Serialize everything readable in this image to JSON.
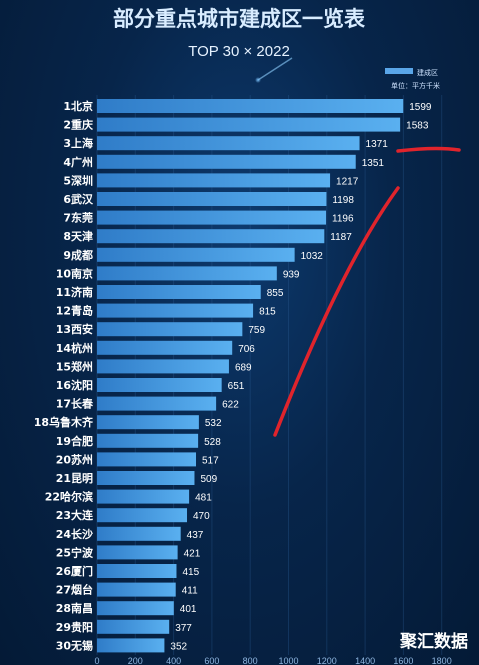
{
  "header": {
    "title": "部分重点城市建成区一览表",
    "subtitle": "TOP 30 × 2022"
  },
  "legend": {
    "series_label": "建成区",
    "unit": "单位：平方千米"
  },
  "watermark": "聚汇数据",
  "colors": {
    "bar": "#3f8fd8",
    "bar_light": "#5aa6e8",
    "background": "#07254a",
    "annotation": "#e0242c"
  },
  "chart_data": {
    "type": "bar",
    "orientation": "horizontal",
    "title": "部分重点城市建成区一览表",
    "subtitle": "TOP 30 × 2022",
    "categories": [
      "1北京",
      "2重庆",
      "3上海",
      "4广州",
      "5深圳",
      "6武汉",
      "7东莞",
      "8天津",
      "9成都",
      "10南京",
      "11济南",
      "12青岛",
      "13西安",
      "14杭州",
      "15郑州",
      "16沈阳",
      "17长春",
      "18乌鲁木齐",
      "19合肥",
      "20苏州",
      "21昆明",
      "22哈尔滨",
      "23大连",
      "24长沙",
      "25宁波",
      "26厦门",
      "27烟台",
      "28南昌",
      "29贵阳",
      "30无锡"
    ],
    "values": [
      1599,
      1583,
      1371,
      1351,
      1217,
      1198,
      1196,
      1187,
      1032,
      939,
      855,
      815,
      759,
      706,
      689,
      651,
      622,
      532,
      528,
      517,
      509,
      481,
      470,
      437,
      421,
      415,
      411,
      401,
      377,
      352
    ],
    "value_labels": [
      "1599",
      "1583",
      "1371",
      "1351",
      "1217",
      "1198",
      "1196",
      "1187",
      "1032",
      "939",
      "855",
      "815",
      "759",
      "706",
      "689",
      "651",
      "622",
      "532",
      "528",
      "517",
      "509",
      "481",
      "470",
      "437",
      "421",
      "415",
      "411",
      "401",
      "377",
      "352"
    ],
    "x_ticks": [
      "0",
      "200",
      "400",
      "600",
      "800",
      "1000",
      "1200",
      "1400",
      "1600",
      "1800"
    ],
    "xlim": [
      0,
      1800
    ],
    "legend": "top-right",
    "grid": true
  }
}
